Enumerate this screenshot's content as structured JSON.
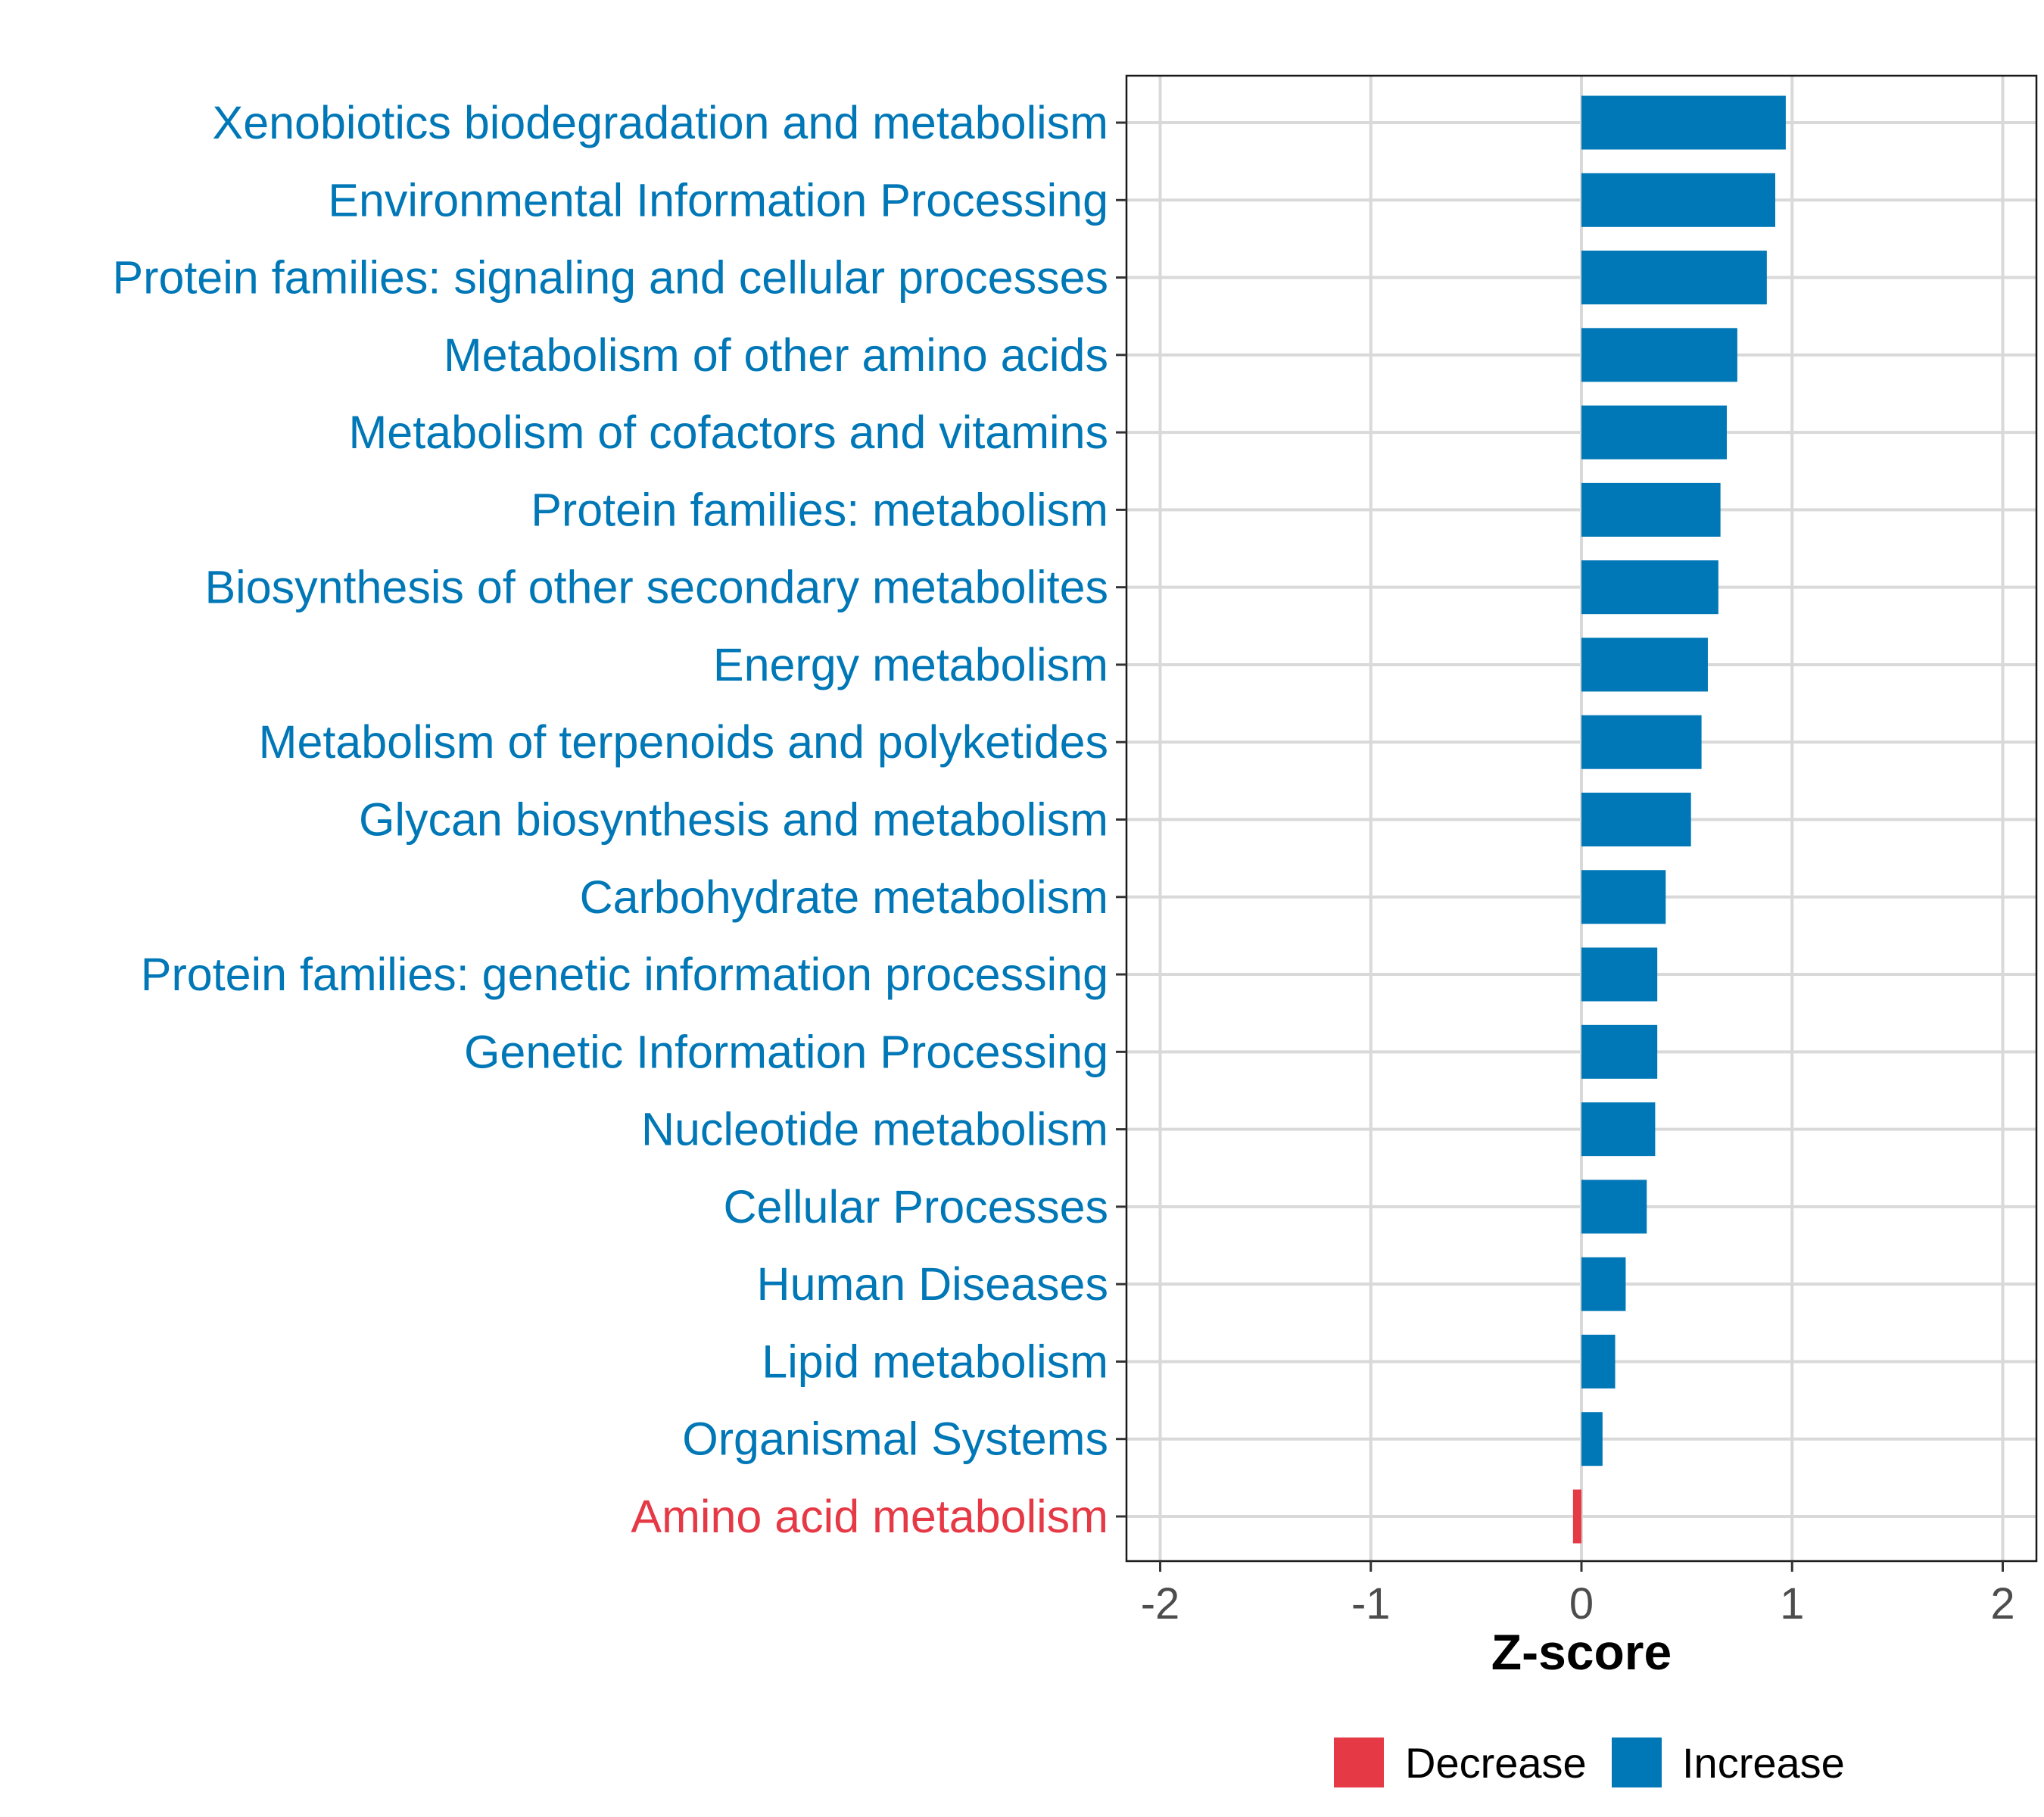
{
  "chart_data": {
    "type": "bar",
    "orientation": "horizontal",
    "title": "",
    "xlabel": "Z-score",
    "ylabel": "",
    "xlim": [
      -2.16,
      2.16
    ],
    "xticks": [
      -2,
      -1,
      0,
      1,
      2
    ],
    "xtick_labels": [
      "-2",
      "-1",
      "0",
      "1",
      "2"
    ],
    "grid": true,
    "categories": [
      "Xenobiotics biodegradation and metabolism",
      "Environmental Information Processing",
      "Protein families: signaling and cellular processes",
      "Metabolism of other amino acids",
      "Metabolism of cofactors and vitamins",
      "Protein families: metabolism",
      "Biosynthesis of other secondary metabolites",
      "Energy metabolism",
      "Metabolism of terpenoids and polyketides",
      "Glycan biosynthesis and metabolism",
      "Carbohydrate metabolism",
      "Protein families: genetic information processing",
      "Genetic Information Processing",
      "Nucleotide metabolism",
      "Cellular Processes",
      "Human Diseases",
      "Lipid metabolism",
      "Organismal Systems",
      "Amino acid metabolism"
    ],
    "values": [
      0.97,
      0.92,
      0.88,
      0.74,
      0.69,
      0.66,
      0.65,
      0.6,
      0.57,
      0.52,
      0.4,
      0.36,
      0.36,
      0.35,
      0.31,
      0.21,
      0.16,
      0.1,
      -0.04
    ],
    "groups": [
      "Increase",
      "Increase",
      "Increase",
      "Increase",
      "Increase",
      "Increase",
      "Increase",
      "Increase",
      "Increase",
      "Increase",
      "Increase",
      "Increase",
      "Increase",
      "Increase",
      "Increase",
      "Increase",
      "Increase",
      "Increase",
      "Decrease"
    ],
    "legend": {
      "placement": "bottom",
      "entries": [
        {
          "label": "Decrease",
          "color": "#e63946"
        },
        {
          "label": "Increase",
          "color": "#0077b6"
        }
      ]
    },
    "colors": {
      "Decrease": "#e63946",
      "Increase": "#0077b6"
    }
  }
}
